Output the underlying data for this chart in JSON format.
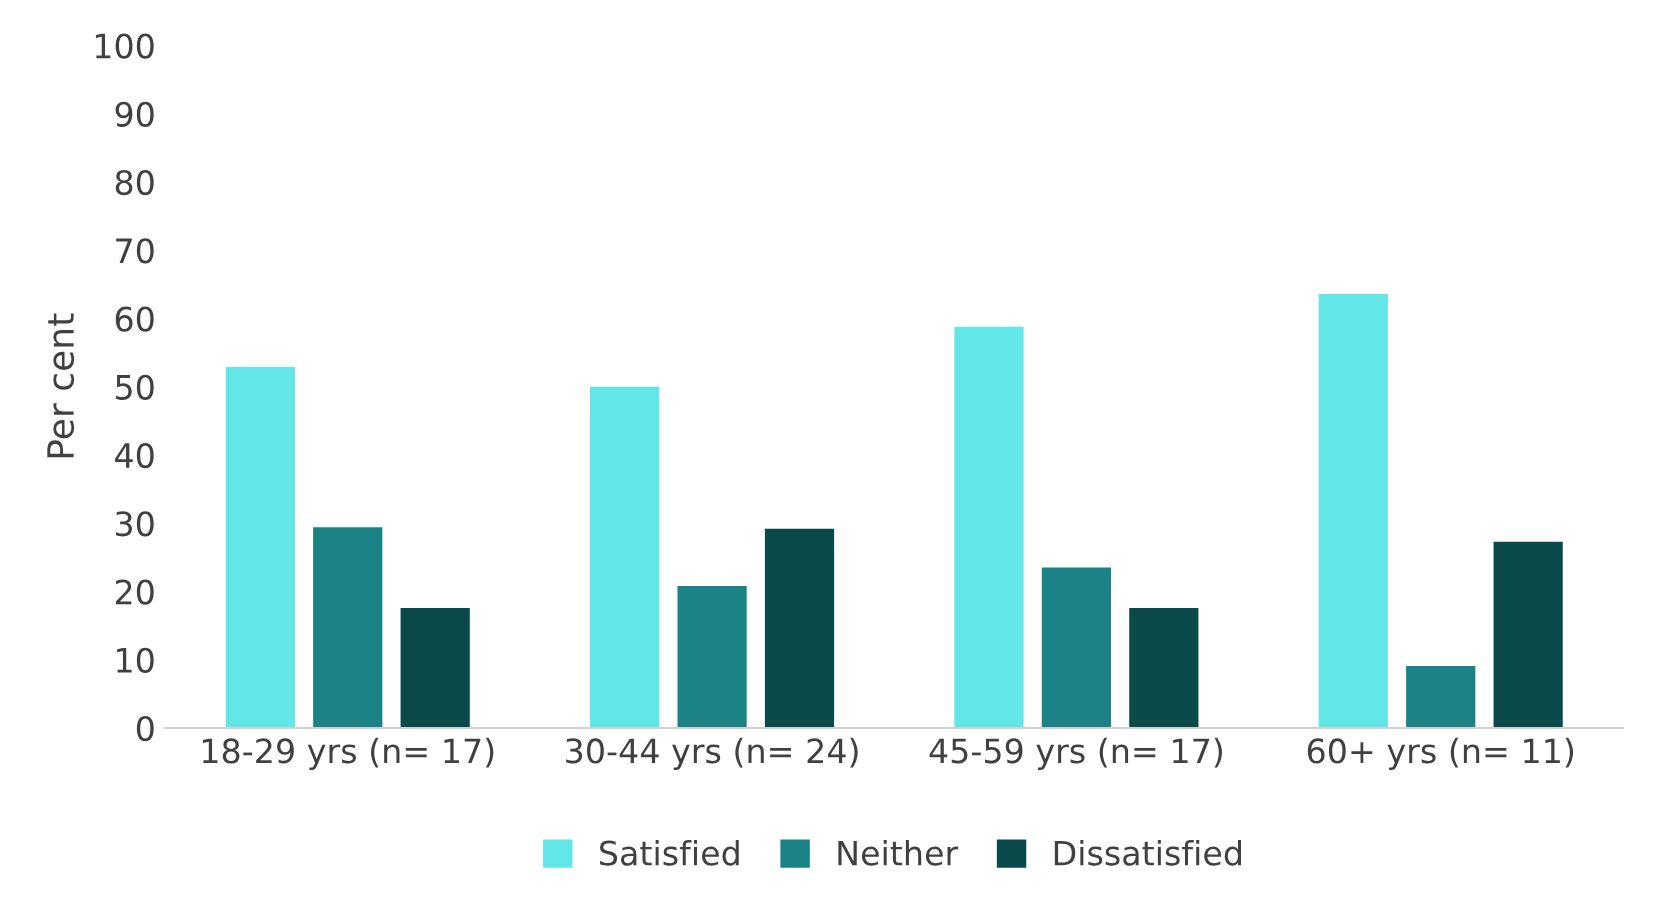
{
  "chart_data": {
    "type": "bar",
    "ylabel": "Per cent",
    "categories": [
      "18-29 yrs (n= 17)",
      "30-44 yrs (n= 24)",
      "45-59 yrs (n= 17)",
      "60+ yrs (n= 11)"
    ],
    "series": [
      {
        "name": "Satisfied",
        "color": "#62e6e8",
        "values": [
          52.9,
          50.0,
          58.8,
          63.6
        ]
      },
      {
        "name": "Neither",
        "color": "#1b8386",
        "values": [
          29.4,
          20.8,
          23.5,
          9.1
        ]
      },
      {
        "name": "Dissatisfied",
        "color": "#0b4a4b",
        "values": [
          17.6,
          29.2,
          17.6,
          27.3
        ]
      }
    ],
    "ylim": [
      0,
      100
    ],
    "yticks": [
      0,
      10,
      20,
      30,
      40,
      50,
      60,
      70,
      80,
      90,
      100
    ],
    "grid": false,
    "legend": "bottom"
  }
}
